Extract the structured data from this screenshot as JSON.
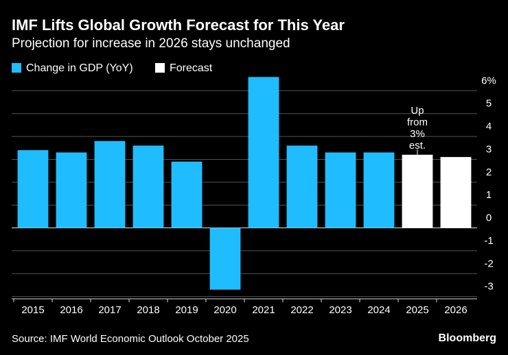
{
  "chart_data": {
    "type": "bar",
    "title": "IMF Lifts Global Growth Forecast for This Year",
    "subtitle": "Projection for increase in 2026 stays unchanged",
    "categories": [
      "2015",
      "2016",
      "2017",
      "2018",
      "2019",
      "2020",
      "2021",
      "2022",
      "2023",
      "2024",
      "2025",
      "2026"
    ],
    "series": [
      {
        "name": "Change in GDP (YoY)",
        "color": "#1fbdff",
        "values": [
          3.4,
          3.3,
          3.8,
          3.6,
          2.9,
          -2.7,
          6.6,
          3.6,
          3.3,
          3.3,
          null,
          null
        ]
      },
      {
        "name": "Forecast",
        "color": "#ffffff",
        "values": [
          null,
          null,
          null,
          null,
          null,
          null,
          null,
          null,
          null,
          null,
          3.2,
          3.1
        ]
      }
    ],
    "ylim": [
      -3.1,
      6.7
    ],
    "yticks": [
      -3,
      -2,
      -1,
      0,
      1,
      2,
      3,
      4,
      5,
      {
        "value": 6,
        "label": "6%"
      }
    ],
    "grid": true,
    "annotation_lines": [
      "Up",
      "from",
      "3%",
      "est."
    ],
    "source": "Source: IMF World Economic Outlook October 2025",
    "brand": "Bloomberg"
  }
}
